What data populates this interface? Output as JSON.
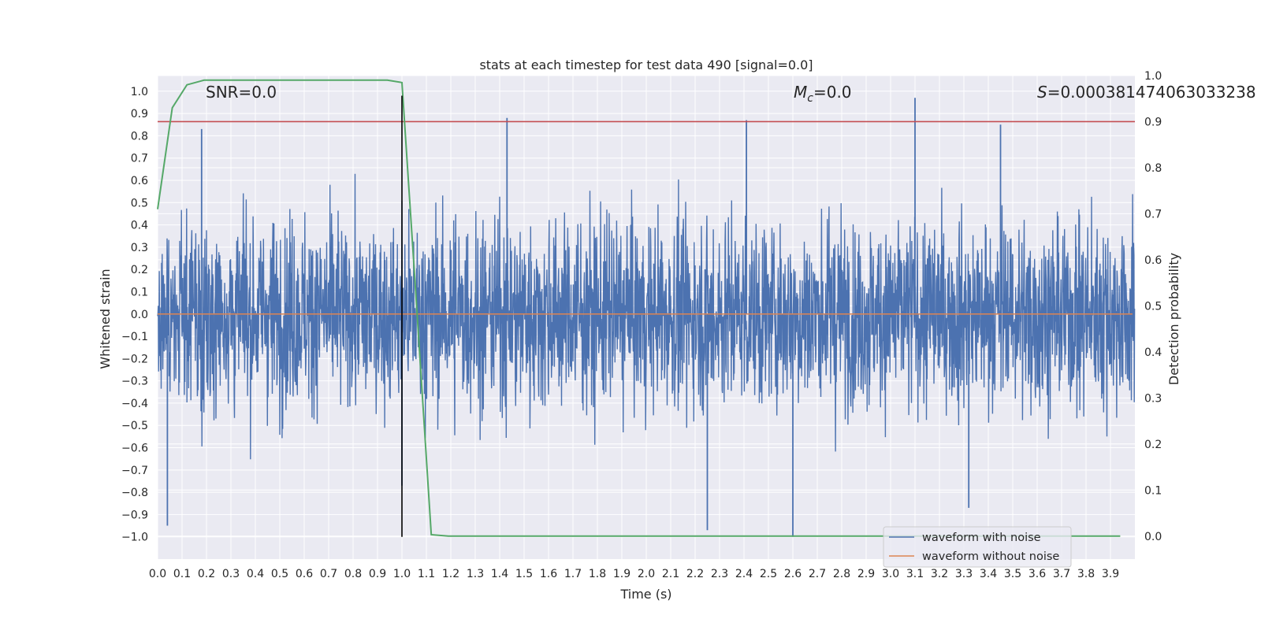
{
  "chart_data": {
    "type": "line",
    "title": "stats at each timestep for test data 490 [signal=0.0]",
    "xlabel": "Time (s)",
    "ylabel": "Whitened strain",
    "y2label": "Detection probability",
    "xlim": [
      0.0,
      4.0
    ],
    "ylim": [
      -1.1,
      1.07
    ],
    "y2lim": [
      -0.05,
      1.0
    ],
    "xticks": [
      "0.0",
      "0.1",
      "0.2",
      "0.3",
      "0.4",
      "0.5",
      "0.6",
      "0.7",
      "0.8",
      "0.9",
      "1.0",
      "1.1",
      "1.2",
      "1.3",
      "1.4",
      "1.5",
      "1.6",
      "1.7",
      "1.8",
      "1.9",
      "2.0",
      "2.1",
      "2.2",
      "2.3",
      "2.4",
      "2.5",
      "2.6",
      "2.7",
      "2.8",
      "2.9",
      "3.0",
      "3.1",
      "3.2",
      "3.3",
      "3.4",
      "3.5",
      "3.6",
      "3.7",
      "3.8",
      "3.9"
    ],
    "yticks": [
      "1.0",
      "0.9",
      "0.8",
      "0.7",
      "0.6",
      "0.5",
      "0.4",
      "0.3",
      "0.2",
      "0.1",
      "0.0",
      "−0.1",
      "−0.2",
      "−0.3",
      "−0.4",
      "−0.5",
      "−0.6",
      "−0.7",
      "−0.8",
      "−0.9",
      "−1.0"
    ],
    "y2ticks": [
      "1.0",
      "0.9",
      "0.8",
      "0.7",
      "0.6",
      "0.5",
      "0.4",
      "0.3",
      "0.2",
      "0.1",
      "0.0"
    ],
    "annotations": {
      "snr": "SNR=0.0",
      "mc_symbol": "M",
      "mc_sub": "c",
      "mc_value": "=0.0",
      "s_symbol": "S",
      "s_value": "=0.000381474063033238"
    },
    "series": [
      {
        "name": "waveform with noise",
        "color": "#4c72b0",
        "noise_amplitude": 0.38,
        "duration_s": 4.0,
        "peaks": [
          {
            "x": 0.04,
            "y": -0.95
          },
          {
            "x": 0.18,
            "y": 0.83
          },
          {
            "x": 1.0,
            "y": -0.77
          },
          {
            "x": 1.43,
            "y": 0.88
          },
          {
            "x": 2.25,
            "y": -0.97
          },
          {
            "x": 2.41,
            "y": 0.87
          },
          {
            "x": 2.6,
            "y": -1.0
          },
          {
            "x": 3.1,
            "y": 0.97
          },
          {
            "x": 3.32,
            "y": -0.87
          },
          {
            "x": 3.45,
            "y": 0.85
          }
        ]
      },
      {
        "name": "waveform without noise",
        "color": "#dd8452",
        "x": [
          0.0,
          3.99
        ],
        "y": [
          0.0,
          0.0
        ]
      },
      {
        "name": "detection probability",
        "color": "#55a868",
        "axis": "right",
        "x": [
          0.0,
          0.06,
          0.12,
          0.19,
          0.25,
          0.5,
          0.75,
          0.94,
          1.0,
          1.06,
          1.12,
          1.19,
          1.5,
          2.0,
          2.5,
          3.0,
          3.5,
          3.94
        ],
        "y": [
          0.71,
          0.93,
          0.98,
          0.99,
          0.99,
          0.99,
          0.99,
          0.99,
          0.985,
          0.5,
          0.003,
          0.0,
          0.0,
          0.0,
          0.0,
          0.0,
          0.0,
          0.0
        ]
      }
    ],
    "threshold_line": {
      "axis": "right",
      "y": 0.9,
      "color": "#c44e52"
    },
    "vertical_line": {
      "x": 1.0,
      "color": "#000000"
    },
    "grid": true,
    "legend": {
      "placement": "lower right",
      "entries": [
        {
          "label": "waveform with noise",
          "color": "#4c72b0"
        },
        {
          "label": "waveform without noise",
          "color": "#dd8452"
        }
      ]
    },
    "background": "#eaeaf2"
  }
}
